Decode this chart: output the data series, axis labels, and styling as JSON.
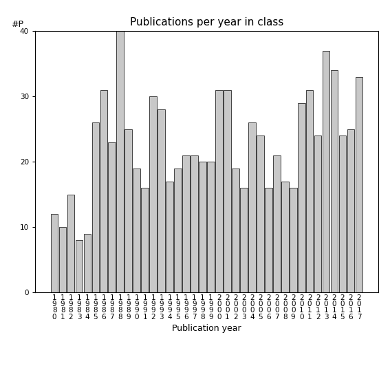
{
  "title": "Publications per year in class",
  "xlabel": "Publication year",
  "ylabel": "#P",
  "years": [
    1980,
    1981,
    1982,
    1983,
    1984,
    1985,
    1986,
    1987,
    1988,
    1989,
    1990,
    1991,
    1992,
    1993,
    1994,
    1995,
    1996,
    1997,
    1998,
    1999,
    2000,
    2001,
    2002,
    2003,
    2004,
    2005,
    2006,
    2007,
    2008,
    2009,
    2010,
    2011,
    2012,
    2013,
    2014,
    2015,
    2016,
    2017
  ],
  "values": [
    12,
    10,
    15,
    8,
    9,
    26,
    31,
    23,
    40,
    25,
    19,
    16,
    30,
    28,
    17,
    19,
    21,
    21,
    20,
    20,
    31,
    31,
    19,
    16,
    26,
    24,
    16,
    21,
    17,
    16,
    29,
    31,
    24,
    37,
    34,
    24,
    25,
    33
  ],
  "bar_color": "#c8c8c8",
  "bar_edge_color": "#000000",
  "ylim": [
    0,
    40
  ],
  "yticks": [
    0,
    10,
    20,
    30,
    40
  ],
  "bg_color": "#ffffff",
  "title_fontsize": 11,
  "label_fontsize": 9,
  "tick_fontsize": 7.5
}
